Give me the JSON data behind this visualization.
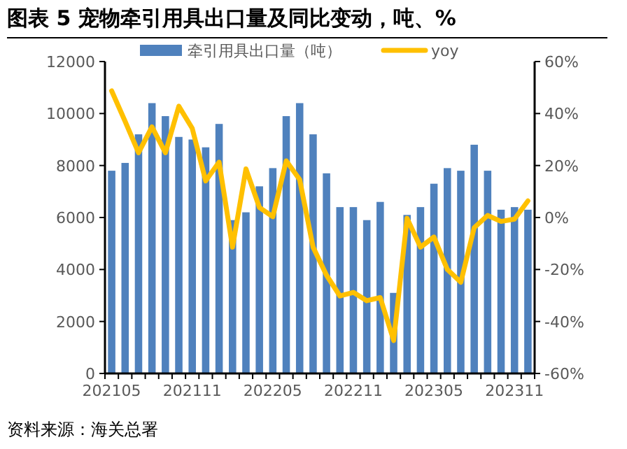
{
  "chart_data": {
    "type": "bar",
    "title": "图表 5 宠物牵引用具出口量及同比变动，吨、%",
    "categories": [
      "202105",
      null,
      null,
      null,
      null,
      null,
      "202111",
      null,
      null,
      null,
      null,
      null,
      "202205",
      null,
      null,
      null,
      null,
      null,
      "202211",
      null,
      null,
      null,
      null,
      null,
      "202305",
      null,
      null,
      null,
      null,
      null,
      "202311",
      null
    ],
    "series": [
      {
        "name": "牵引用具出口量（吨）",
        "color": "#4f81bd",
        "values": [
          7800,
          8100,
          9200,
          10400,
          9900,
          9100,
          9000,
          8700,
          9600,
          5900,
          6200,
          7200,
          7900,
          9900,
          10400,
          9200,
          7700,
          6400,
          6400,
          5900,
          6600,
          3100,
          6100,
          6400,
          7300,
          7900,
          7800,
          8800,
          7800,
          6300,
          6400,
          6300
        ]
      },
      {
        "name": "yoy",
        "type": "line",
        "axis": "y2",
        "color": "#ffc000",
        "values": [
          48.7,
          37,
          24.9,
          34.9,
          24.9,
          42.8,
          34.3,
          14.1,
          21.3,
          -11.4,
          18.7,
          3.9,
          0.3,
          21.8,
          14.6,
          -11.4,
          -22.2,
          -30.2,
          -28.8,
          -32,
          -30.8,
          -47.3,
          -0.3,
          -11.4,
          -7.5,
          -20,
          -24.9,
          -3.9,
          0.8,
          -1.5,
          -0.6,
          6.4
        ]
      }
    ],
    "ylim": [
      0,
      12000
    ],
    "yticks": [
      0,
      2000,
      4000,
      6000,
      8000,
      10000,
      12000
    ],
    "y2lim": [
      -60,
      60
    ],
    "y2ticks": [
      {
        "value": -60,
        "label": "-60%"
      },
      {
        "value": -40,
        "label": "-40%"
      },
      {
        "value": -20,
        "label": "-20%"
      },
      {
        "value": 0,
        "label": "0%"
      },
      {
        "value": 20,
        "label": "20%"
      },
      {
        "value": 40,
        "label": "40%"
      },
      {
        "value": 60,
        "label": "60%"
      }
    ],
    "legend": "top",
    "annotations": [
      "资料来源：海关总署"
    ]
  }
}
